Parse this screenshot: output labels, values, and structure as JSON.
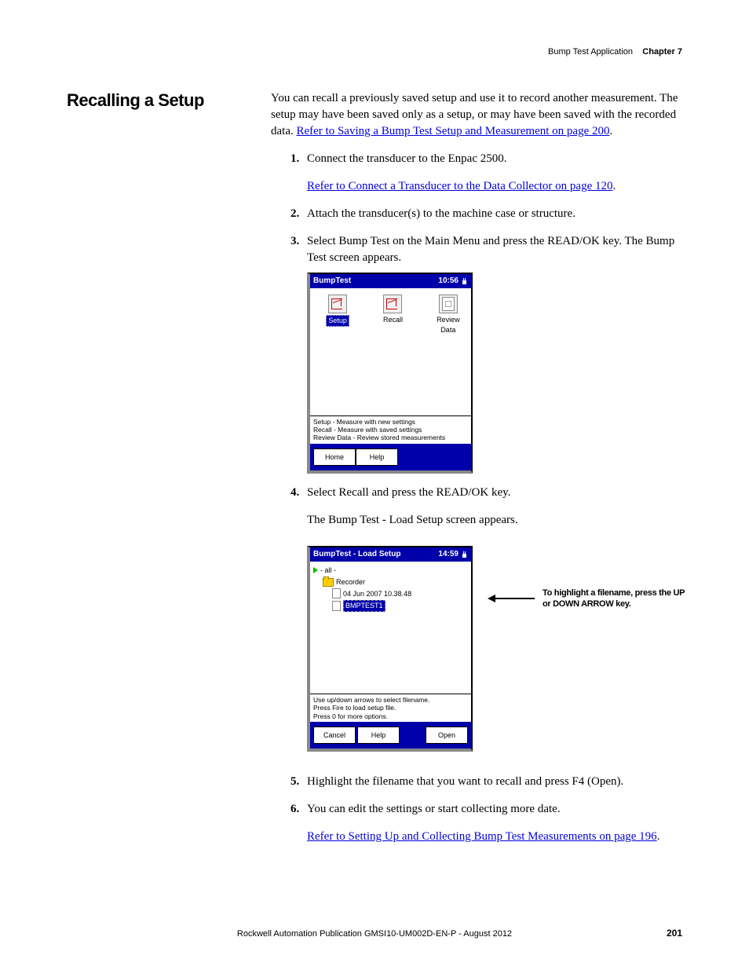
{
  "header": {
    "section": "Bump Test Application",
    "chapter": "Chapter 7"
  },
  "section_title": "Recalling a Setup",
  "intro": {
    "text": "You can recall a previously saved setup and use it to record another measurement. The setup may have been saved only as a setup, or may have been saved with the recorded data. ",
    "link": "Refer to Saving a Bump Test Setup and Measurement on page 200"
  },
  "steps": {
    "s1": "Connect the transducer to the Enpac 2500.",
    "s1_link": "Refer to Connect a Transducer to the Data Collector on page 120",
    "s2": "Attach the transducer(s) to the machine case or structure.",
    "s3": "Select Bump Test on the Main Menu and press the READ/OK key. The Bump Test screen appears.",
    "s4": "Select Recall and press the READ/OK key.",
    "s4_sub": "The Bump Test - Load Setup screen appears.",
    "s5": "Highlight the filename that you want to recall and press F4 (Open).",
    "s6": "You can edit the settings or start collecting more date.",
    "s6_link": "Refer to Setting Up and Collecting Bump Test Measurements on page 196"
  },
  "screenshot1": {
    "title": "BumpTest",
    "time": "10:56",
    "icons": {
      "setup": "Setup",
      "recall": "Recall",
      "review": "Review Data"
    },
    "hint1": "Setup - Measure with new settings",
    "hint2": "Recall - Measure with saved settings",
    "hint3": "Review Data - Review stored measurements",
    "btn_home": "Home",
    "btn_help": "Help"
  },
  "screenshot2": {
    "title": "BumpTest - Load Setup",
    "time": "14:59",
    "tree": {
      "root": "- all -",
      "folder": "Recorder",
      "file1": "04 Jun 2007 10.38.48",
      "file2": "BMPTEST1"
    },
    "hint1": "Use up/down arrows to select filename.",
    "hint2": "Press Fire to load setup file.",
    "hint3": "Press 0 for more options.",
    "btn_cancel": "Cancel",
    "btn_help": "Help",
    "btn_open": "Open"
  },
  "callout": "To highlight a filename, press the UP or DOWN ARROW key.",
  "footer_text": "Rockwell Automation Publication GMSI10-UM002D-EN-P - August 2012",
  "page_number": "201",
  "colors": {
    "link": "#0000dd",
    "titlebar": "#0000aa",
    "tree_arrow": "#00c000",
    "folder": "#ffcc00"
  }
}
